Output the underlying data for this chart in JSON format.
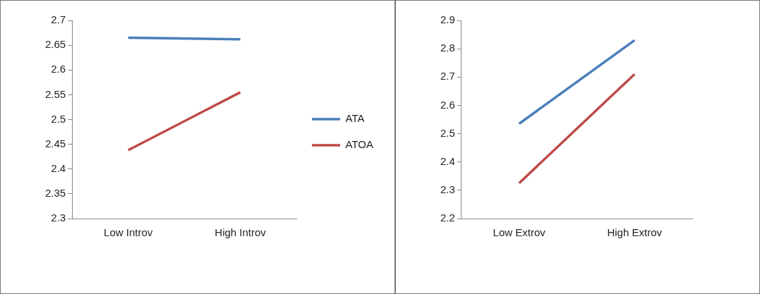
{
  "chart_data": [
    {
      "type": "line",
      "categories": [
        "Low Introv",
        "High Introv"
      ],
      "series": [
        {
          "name": "ATA",
          "color": "#4a7ebb",
          "values": [
            2.665,
            2.662
          ]
        },
        {
          "name": "ATOA",
          "color": "#be4b48",
          "values": [
            2.438,
            2.555
          ]
        }
      ],
      "ylim": [
        2.3,
        2.7
      ],
      "yticks": [
        2.3,
        2.35,
        2.4,
        2.45,
        2.5,
        2.55,
        2.6,
        2.65,
        2.7
      ],
      "legend": "right",
      "marker": "none",
      "grid": false
    },
    {
      "type": "line",
      "categories": [
        "Low Extrov",
        "High Extrov"
      ],
      "series": [
        {
          "color": "#4a7ebb",
          "values": [
            2.535,
            2.83
          ]
        },
        {
          "color": "#be4b48",
          "values": [
            2.325,
            2.71
          ]
        }
      ],
      "ylim": [
        2.2,
        2.9
      ],
      "yticks": [
        2.2,
        2.3,
        2.4,
        2.5,
        2.6,
        2.7,
        2.8,
        2.9
      ],
      "legend": false,
      "marker": "none",
      "grid": false
    }
  ]
}
